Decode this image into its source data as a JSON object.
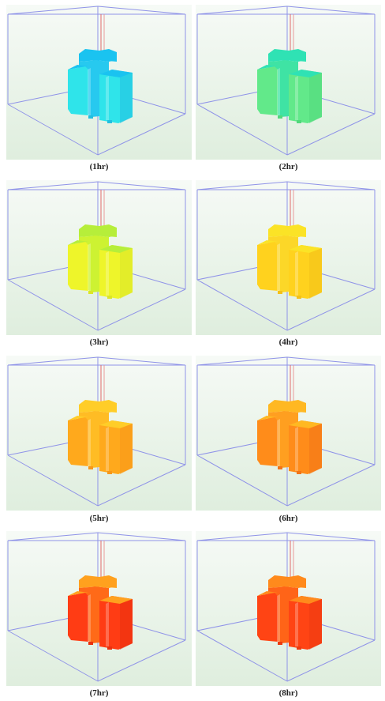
{
  "panels": [
    {
      "label": "(1hr)",
      "main": "#2fe4ea",
      "top": "#1ac3f0",
      "back": "#27c9ef",
      "shade": "#22bfe0"
    },
    {
      "label": "(2hr)",
      "main": "#62e98a",
      "top": "#2fe2b4",
      "back": "#3fe3a4",
      "shade": "#52d87c"
    },
    {
      "label": "(3hr)",
      "main": "#eef52a",
      "top": "#b6ee3a",
      "back": "#cdf232",
      "shade": "#dbe628"
    },
    {
      "label": "(4hr)",
      "main": "#ffd21e",
      "top": "#fbe326",
      "back": "#fcd728",
      "shade": "#f3c11a"
    },
    {
      "label": "(5hr)",
      "main": "#ffa91c",
      "top": "#ffcd28",
      "back": "#ffbc24",
      "shade": "#f7981a"
    },
    {
      "label": "(6hr)",
      "main": "#ff8c1a",
      "top": "#ffb822",
      "back": "#ff9f20",
      "shade": "#f27418"
    },
    {
      "label": "(7hr)",
      "main": "#ff3c14",
      "top": "#ffa11e",
      "back": "#ff6a18",
      "shade": "#e9300e"
    },
    {
      "label": "(8hr)",
      "main": "#ff4414",
      "top": "#ff8a1c",
      "back": "#ff6418",
      "shade": "#ec3a10"
    }
  ]
}
